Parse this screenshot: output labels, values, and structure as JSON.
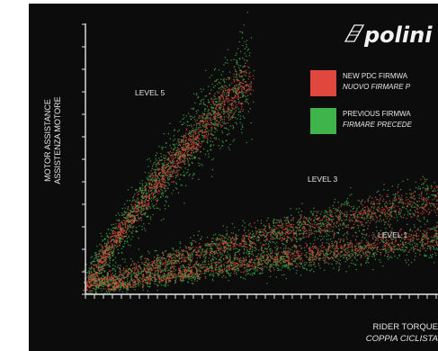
{
  "brand": {
    "logo_text": "polini"
  },
  "colors": {
    "background": "#0c0c0c",
    "axis": "#e6e6e6",
    "new_series": "#e0473f",
    "previous_series": "#3fb44a"
  },
  "chart_data": {
    "type": "scatter",
    "ylabel_lines": [
      "MOTOR ASSISTANCE",
      "ASSISTENZA MOTORE"
    ],
    "xlabel_lines": [
      "RIDER TORQUE",
      "COPPIA CICLISTA"
    ],
    "legend_placement": "top-right",
    "grid": false,
    "legend": [
      {
        "key": "new",
        "lines": [
          "NEW PDC FIRMWA",
          "NUOVO FIRMARE P"
        ]
      },
      {
        "key": "previous",
        "lines": [
          "PREVIOUS FIRMWA",
          "FIRMARE PRECEDE"
        ]
      }
    ],
    "annotations": [
      "LEVEL 5",
      "LEVEL 3",
      "LEVEL 1"
    ],
    "bands": [
      {
        "level": "LEVEL 5",
        "series": "previous",
        "x_range": [
          0,
          0.4
        ],
        "y_range": [
          0,
          0.8
        ],
        "spread": 0.09
      },
      {
        "level": "LEVEL 5",
        "series": "new",
        "x_range": [
          0,
          0.4
        ],
        "y_range": [
          0,
          0.8
        ],
        "spread": 0.045
      },
      {
        "level": "LEVEL 3",
        "series": "previous",
        "x_range": [
          0.02,
          1.0
        ],
        "y_range": [
          0.03,
          0.4
        ],
        "spread": 0.05
      },
      {
        "level": "LEVEL 3",
        "series": "new",
        "x_range": [
          0.02,
          1.0
        ],
        "y_range": [
          0.03,
          0.4
        ],
        "spread": 0.035
      },
      {
        "level": "LEVEL 1",
        "series": "previous",
        "x_range": [
          0.05,
          1.0
        ],
        "y_range": [
          0.02,
          0.22
        ],
        "spread": 0.04
      },
      {
        "level": "LEVEL 1",
        "series": "new",
        "x_range": [
          0.05,
          1.0
        ],
        "y_range": [
          0.02,
          0.24
        ],
        "spread": 0.03
      }
    ]
  }
}
